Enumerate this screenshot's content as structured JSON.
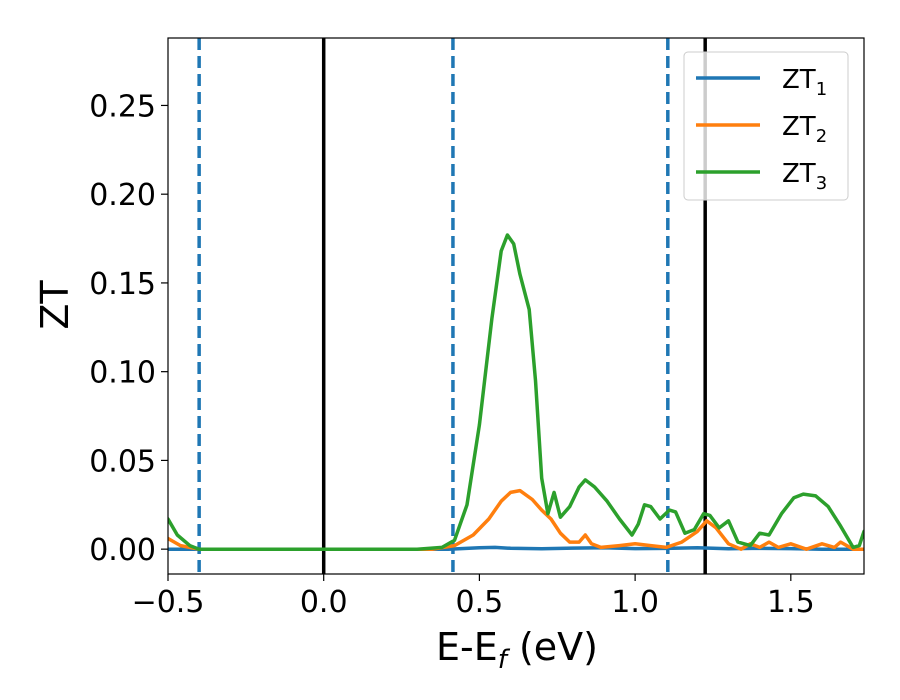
{
  "chart_data": {
    "type": "line",
    "title": "",
    "xlabel": {
      "main": "E-E",
      "sub": "f",
      "suffix": " (eV)"
    },
    "ylabel": "ZT",
    "xlim": [
      -0.5,
      1.735
    ],
    "ylim": [
      -0.014,
      0.288
    ],
    "x_ticks": [
      -0.5,
      0.0,
      0.5,
      1.0,
      1.5
    ],
    "x_tick_labels": [
      "−0.5",
      "0.0",
      "0.5",
      "1.0",
      "1.5"
    ],
    "y_ticks": [
      0.0,
      0.05,
      0.1,
      0.15,
      0.2,
      0.25
    ],
    "y_tick_labels": [
      "0.00",
      "0.05",
      "0.10",
      "0.15",
      "0.20",
      "0.25"
    ],
    "grid": false,
    "legend_position": "top-right",
    "vertical_lines": [
      {
        "x": -0.4,
        "style": "dashed",
        "color": "#1f77b4"
      },
      {
        "x": 0.0,
        "style": "solid",
        "color": "#000000"
      },
      {
        "x": 0.415,
        "style": "dashed",
        "color": "#1f77b4"
      },
      {
        "x": 1.105,
        "style": "dashed",
        "color": "#1f77b4"
      },
      {
        "x": 1.225,
        "style": "solid",
        "color": "#000000"
      }
    ],
    "series": [
      {
        "name": "ZT",
        "name_sub": "1",
        "color": "#1f77b4",
        "points": [
          [
            -0.5,
            0.0
          ],
          [
            -0.4,
            0.0
          ],
          [
            0.0,
            0.0
          ],
          [
            0.4,
            0.0
          ],
          [
            0.5,
            0.0008
          ],
          [
            0.55,
            0.001
          ],
          [
            0.6,
            0.0005
          ],
          [
            0.7,
            0.0002
          ],
          [
            0.8,
            0.0006
          ],
          [
            0.9,
            0.0008
          ],
          [
            1.0,
            0.0003
          ],
          [
            1.1,
            0.0004
          ],
          [
            1.2,
            0.0008
          ],
          [
            1.3,
            0.0002
          ],
          [
            1.4,
            0.0005
          ],
          [
            1.5,
            0.0003
          ],
          [
            1.6,
            0.0
          ],
          [
            1.7,
            0.0
          ],
          [
            1.735,
            0.0
          ]
        ]
      },
      {
        "name": "ZT",
        "name_sub": "2",
        "color": "#ff7f0e",
        "points": [
          [
            -0.5,
            0.006
          ],
          [
            -0.46,
            0.002
          ],
          [
            -0.4,
            0.0
          ],
          [
            0.0,
            0.0
          ],
          [
            0.35,
            0.0
          ],
          [
            0.42,
            0.002
          ],
          [
            0.48,
            0.008
          ],
          [
            0.53,
            0.017
          ],
          [
            0.57,
            0.027
          ],
          [
            0.6,
            0.032
          ],
          [
            0.63,
            0.033
          ],
          [
            0.67,
            0.028
          ],
          [
            0.7,
            0.022
          ],
          [
            0.73,
            0.017
          ],
          [
            0.76,
            0.009
          ],
          [
            0.79,
            0.004
          ],
          [
            0.82,
            0.004
          ],
          [
            0.84,
            0.008
          ],
          [
            0.86,
            0.003
          ],
          [
            0.89,
            0.001
          ],
          [
            0.95,
            0.002
          ],
          [
            1.0,
            0.003
          ],
          [
            1.05,
            0.002
          ],
          [
            1.1,
            0.001
          ],
          [
            1.15,
            0.004
          ],
          [
            1.2,
            0.01
          ],
          [
            1.23,
            0.016
          ],
          [
            1.26,
            0.012
          ],
          [
            1.3,
            0.003
          ],
          [
            1.34,
            0.0
          ],
          [
            1.37,
            0.003
          ],
          [
            1.4,
            0.001
          ],
          [
            1.43,
            0.004
          ],
          [
            1.46,
            0.001
          ],
          [
            1.5,
            0.003
          ],
          [
            1.55,
            0.0
          ],
          [
            1.6,
            0.003
          ],
          [
            1.64,
            0.001
          ],
          [
            1.66,
            0.004
          ],
          [
            1.7,
            0.0
          ],
          [
            1.735,
            0.0
          ]
        ]
      },
      {
        "name": "ZT",
        "name_sub": "3",
        "color": "#2ca02c",
        "points": [
          [
            -0.5,
            0.017
          ],
          [
            -0.47,
            0.008
          ],
          [
            -0.43,
            0.002
          ],
          [
            -0.4,
            0.0
          ],
          [
            0.0,
            0.0
          ],
          [
            0.3,
            0.0
          ],
          [
            0.38,
            0.001
          ],
          [
            0.42,
            0.005
          ],
          [
            0.46,
            0.025
          ],
          [
            0.5,
            0.07
          ],
          [
            0.54,
            0.13
          ],
          [
            0.57,
            0.168
          ],
          [
            0.59,
            0.177
          ],
          [
            0.61,
            0.172
          ],
          [
            0.63,
            0.155
          ],
          [
            0.66,
            0.135
          ],
          [
            0.68,
            0.095
          ],
          [
            0.7,
            0.04
          ],
          [
            0.72,
            0.02
          ],
          [
            0.74,
            0.032
          ],
          [
            0.76,
            0.018
          ],
          [
            0.79,
            0.024
          ],
          [
            0.82,
            0.035
          ],
          [
            0.84,
            0.039
          ],
          [
            0.87,
            0.035
          ],
          [
            0.91,
            0.027
          ],
          [
            0.95,
            0.017
          ],
          [
            0.99,
            0.008
          ],
          [
            1.01,
            0.014
          ],
          [
            1.03,
            0.025
          ],
          [
            1.05,
            0.024
          ],
          [
            1.08,
            0.017
          ],
          [
            1.11,
            0.022
          ],
          [
            1.13,
            0.021
          ],
          [
            1.16,
            0.009
          ],
          [
            1.19,
            0.011
          ],
          [
            1.22,
            0.02
          ],
          [
            1.24,
            0.019
          ],
          [
            1.27,
            0.012
          ],
          [
            1.3,
            0.016
          ],
          [
            1.33,
            0.004
          ],
          [
            1.37,
            0.002
          ],
          [
            1.4,
            0.009
          ],
          [
            1.43,
            0.008
          ],
          [
            1.47,
            0.02
          ],
          [
            1.51,
            0.029
          ],
          [
            1.54,
            0.031
          ],
          [
            1.58,
            0.03
          ],
          [
            1.62,
            0.024
          ],
          [
            1.66,
            0.013
          ],
          [
            1.7,
            0.001
          ],
          [
            1.72,
            0.002
          ],
          [
            1.735,
            0.01
          ]
        ]
      }
    ]
  }
}
